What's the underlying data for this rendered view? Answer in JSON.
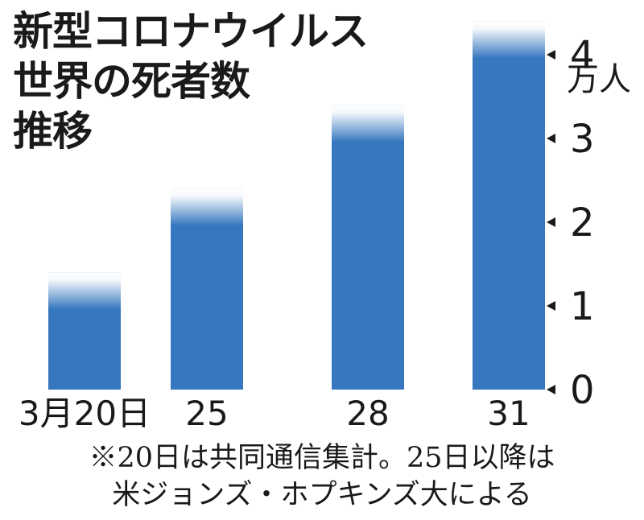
{
  "chart_data": {
    "type": "bar",
    "title_lines": [
      "新型コロナウイルス",
      "世界の死者数",
      "推移"
    ],
    "categories": [
      "3月20日",
      "25",
      "28",
      "31"
    ],
    "values": [
      1.4,
      2.4,
      3.4,
      4.4
    ],
    "yticks": [
      "0",
      "1",
      "2",
      "3",
      "4"
    ],
    "ylim": [
      0,
      4.4
    ],
    "y_unit": "万人",
    "axis_position": "right",
    "grid": false,
    "legend": "none",
    "bar_color": "#3677bf",
    "notes": [
      "※20日は共同通信集計。25日以降は",
      "米ジョンズ・ホプキンズ大による"
    ]
  }
}
